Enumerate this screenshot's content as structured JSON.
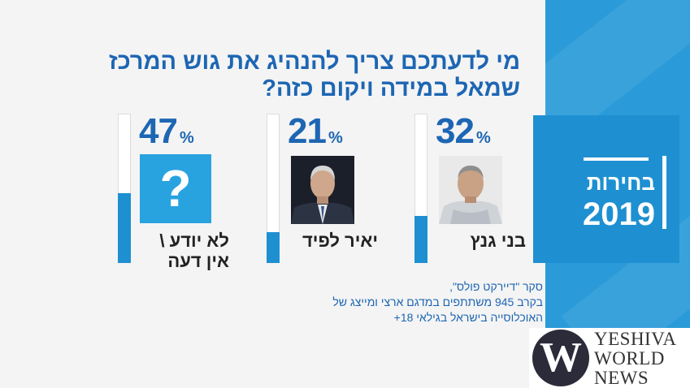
{
  "title": {
    "line1": "מי לדעתכם צריך להנהיג את גוש המרכז",
    "line2": "שמאל במידה ויקום כזה?"
  },
  "elections": {
    "label": "בחירות",
    "year": "2019"
  },
  "colors": {
    "primary_blue": "#1d66b3",
    "accent_blue": "#1e90d2",
    "panel_blue": "#2a9bd8",
    "background": "#f4f4f4"
  },
  "chart_data": {
    "type": "bar",
    "categories": [
      "בני גנץ",
      "יאיר לפיד",
      "לא יודע \\ אין דעה"
    ],
    "values": [
      32,
      21,
      47
    ],
    "unit": "%",
    "ylim": [
      0,
      100
    ]
  },
  "candidates": [
    {
      "value": "32",
      "unit": "%",
      "name_line1": "בני גנץ",
      "name_line2": ""
    },
    {
      "value": "21",
      "unit": "%",
      "name_line1": "יאיר לפיד",
      "name_line2": ""
    },
    {
      "value": "47",
      "unit": "%",
      "name_line1": "לא יודע \\",
      "name_line2": "אין דעה"
    }
  ],
  "unknown_symbol": "?",
  "survey": {
    "line1": "סקר \"דיירקט פולס\",",
    "line2": "בקרב 945 משתתפים במדגם ארצי ומייצג של",
    "line3": "האוכלוסייה בישראל בגילאי 18+"
  },
  "logo": {
    "mark": "W",
    "line1": "YESHIVA",
    "line2": "WORLD",
    "line3": "NEWS"
  }
}
